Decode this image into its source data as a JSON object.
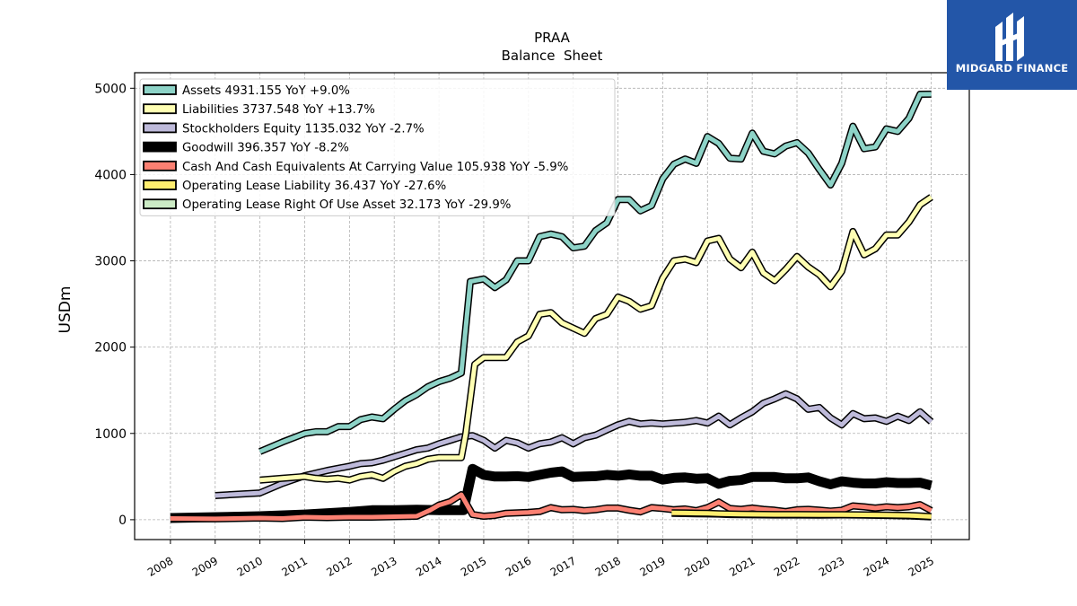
{
  "brand": {
    "name": "MIDGARD FINANCE",
    "bg_color": "#2356a8"
  },
  "chart_data": {
    "type": "line",
    "title": "PRAA",
    "subtitle": "Balance  Sheet",
    "ylabel": "USDm",
    "xlabel": "",
    "xlim": [
      2007.2,
      2025.85
    ],
    "ylim": [
      -230,
      5180
    ],
    "x_ticks": [
      "2008",
      "2009",
      "2010",
      "2011",
      "2012",
      "2013",
      "2014",
      "2015",
      "2016",
      "2017",
      "2018",
      "2019",
      "2020",
      "2021",
      "2022",
      "2023",
      "2024",
      "2025"
    ],
    "y_ticks": [
      "0",
      "1000",
      "2000",
      "3000",
      "4000",
      "5000"
    ],
    "grid": true,
    "legend_position": "top-left",
    "series": [
      {
        "name": "Goodwill",
        "legend": "Goodwill  396.357 YoY -8.2%",
        "color": "#000000",
        "x": [
          2008.0,
          2010.0,
          2011.0,
          2012.0,
          2012.5,
          2013.0,
          2013.5,
          2014.0,
          2014.4,
          2014.55,
          2014.75,
          2015.0,
          2015.25,
          2015.5,
          2015.75,
          2016.0,
          2016.25,
          2016.5,
          2016.75,
          2017.0,
          2017.25,
          2017.5,
          2017.75,
          2018.0,
          2018.25,
          2018.5,
          2018.75,
          2019.0,
          2019.25,
          2019.5,
          2019.75,
          2020.0,
          2020.25,
          2020.5,
          2020.75,
          2021.0,
          2021.25,
          2021.5,
          2021.75,
          2022.0,
          2022.25,
          2022.5,
          2022.75,
          2023.0,
          2023.25,
          2023.5,
          2023.75,
          2024.0,
          2024.25,
          2024.5,
          2024.75,
          2025.0
        ],
        "y": [
          20,
          40,
          60,
          90,
          110,
          110,
          115,
          110,
          110,
          110,
          590,
          520,
          500,
          500,
          505,
          495,
          520,
          545,
          560,
          495,
          500,
          505,
          520,
          510,
          525,
          510,
          510,
          465,
          485,
          490,
          475,
          480,
          415,
          450,
          460,
          495,
          495,
          495,
          480,
          480,
          490,
          445,
          410,
          445,
          430,
          420,
          420,
          435,
          425,
          425,
          430,
          396
        ]
      },
      {
        "name": "Cash And Cash Equivalents At Carrying Value",
        "legend": "Cash And Cash Equivalents At Carrying Value  105.938 YoY -5.9%",
        "color": "#fb8072",
        "x": [
          2008.0,
          2009.0,
          2010.0,
          2010.5,
          2011.0,
          2011.5,
          2012.0,
          2012.5,
          2013.0,
          2013.5,
          2013.8,
          2014.0,
          2014.25,
          2014.5,
          2014.75,
          2015.0,
          2015.25,
          2015.5,
          2015.75,
          2016.0,
          2016.25,
          2016.5,
          2016.75,
          2017.0,
          2017.25,
          2017.5,
          2017.75,
          2018.0,
          2018.25,
          2018.5,
          2018.75,
          2019.0,
          2019.25,
          2019.5,
          2019.75,
          2020.0,
          2020.25,
          2020.5,
          2020.75,
          2021.0,
          2021.25,
          2021.5,
          2021.75,
          2022.0,
          2022.25,
          2022.5,
          2022.75,
          2023.0,
          2023.25,
          2023.5,
          2023.75,
          2024.0,
          2024.25,
          2024.5,
          2024.75,
          2025.0
        ],
        "y": [
          15,
          10,
          20,
          15,
          30,
          25,
          30,
          30,
          35,
          40,
          110,
          170,
          210,
          290,
          60,
          40,
          50,
          75,
          80,
          85,
          95,
          140,
          115,
          120,
          105,
          115,
          135,
          135,
          110,
          90,
          140,
          130,
          115,
          125,
          105,
          140,
          205,
          130,
          120,
          135,
          120,
          110,
          95,
          115,
          120,
          110,
          100,
          110,
          160,
          150,
          135,
          150,
          140,
          150,
          175,
          106
        ]
      },
      {
        "name": "Operating Lease Right Of Use Asset",
        "legend": "Operating Lease Right Of Use Asset  32.173 YoY -29.9%",
        "color": "#ccebc5",
        "x": [
          2019.2,
          2019.5,
          2019.75,
          2020.0,
          2020.25,
          2020.5,
          2020.75,
          2021.0,
          2021.5,
          2022.0,
          2022.5,
          2023.0,
          2023.5,
          2024.0,
          2024.5,
          2025.0
        ],
        "y": [
          75,
          72,
          70,
          68,
          65,
          60,
          58,
          57,
          55,
          55,
          54,
          56,
          54,
          50,
          45,
          32
        ]
      },
      {
        "name": "Operating Lease Liability",
        "legend": "Operating Lease Liability  36.437 YoY -27.6%",
        "color": "#ffed6f",
        "x": [
          2019.2,
          2019.5,
          2019.75,
          2020.0,
          2020.25,
          2020.5,
          2020.75,
          2021.0,
          2021.5,
          2022.0,
          2022.5,
          2023.0,
          2023.5,
          2024.0,
          2024.5,
          2025.0
        ],
        "y": [
          80,
          78,
          76,
          74,
          70,
          66,
          63,
          62,
          60,
          60,
          58,
          58,
          56,
          54,
          50,
          36
        ]
      },
      {
        "name": "Stockholders Equity",
        "legend": "Stockholders Equity  1135.032 YoY -2.7%",
        "color": "#bebada",
        "x": [
          2009.0,
          2010.0,
          2010.5,
          2011.0,
          2011.5,
          2012.0,
          2012.25,
          2012.5,
          2012.75,
          2013.0,
          2013.25,
          2013.5,
          2013.75,
          2014.0,
          2014.25,
          2014.5,
          2014.75,
          2015.0,
          2015.25,
          2015.5,
          2015.75,
          2016.0,
          2016.25,
          2016.5,
          2016.75,
          2017.0,
          2017.25,
          2017.5,
          2017.75,
          2018.0,
          2018.25,
          2018.5,
          2018.75,
          2019.0,
          2019.25,
          2019.5,
          2019.75,
          2020.0,
          2020.25,
          2020.5,
          2020.75,
          2021.0,
          2021.25,
          2021.5,
          2021.75,
          2022.0,
          2022.25,
          2022.5,
          2022.75,
          2023.0,
          2023.25,
          2023.5,
          2023.75,
          2024.0,
          2024.25,
          2024.5,
          2024.75,
          2025.0
        ],
        "y": [
          280,
          310,
          420,
          510,
          570,
          620,
          650,
          660,
          690,
          730,
          770,
          810,
          830,
          880,
          920,
          960,
          975,
          920,
          830,
          920,
          890,
          830,
          880,
          900,
          950,
          880,
          950,
          980,
          1040,
          1100,
          1140,
          1110,
          1120,
          1110,
          1120,
          1130,
          1150,
          1120,
          1200,
          1100,
          1180,
          1250,
          1350,
          1400,
          1460,
          1400,
          1280,
          1300,
          1180,
          1100,
          1230,
          1170,
          1180,
          1140,
          1200,
          1150,
          1250,
          1135
        ]
      },
      {
        "name": "Liabilities",
        "legend": "Liabilities  3737.548 YoY +13.7%",
        "color": "#ffffb3",
        "x": [
          2010.0,
          2010.5,
          2011.0,
          2011.25,
          2011.5,
          2011.75,
          2012.0,
          2012.25,
          2012.5,
          2012.75,
          2013.0,
          2013.25,
          2013.5,
          2013.75,
          2014.0,
          2014.25,
          2014.5,
          2014.6,
          2014.8,
          2015.0,
          2015.25,
          2015.5,
          2015.75,
          2016.0,
          2016.25,
          2016.5,
          2016.75,
          2017.0,
          2017.25,
          2017.5,
          2017.75,
          2018.0,
          2018.25,
          2018.5,
          2018.75,
          2019.0,
          2019.25,
          2019.5,
          2019.75,
          2020.0,
          2020.25,
          2020.5,
          2020.75,
          2021.0,
          2021.25,
          2021.5,
          2021.75,
          2022.0,
          2022.25,
          2022.5,
          2022.75,
          2023.0,
          2023.25,
          2023.5,
          2023.75,
          2024.0,
          2024.25,
          2024.5,
          2024.75,
          2025.0
        ],
        "y": [
          460,
          480,
          500,
          480,
          470,
          480,
          460,
          500,
          520,
          480,
          560,
          620,
          650,
          700,
          720,
          720,
          720,
          1000,
          1800,
          1880,
          1880,
          1880,
          2060,
          2130,
          2380,
          2400,
          2280,
          2220,
          2160,
          2330,
          2380,
          2580,
          2530,
          2440,
          2480,
          2800,
          3000,
          3020,
          2980,
          3230,
          3260,
          3020,
          2920,
          3100,
          2860,
          2770,
          2900,
          3050,
          2930,
          2840,
          2700,
          2880,
          3340,
          3070,
          3140,
          3300,
          3300,
          3450,
          3650,
          3738
        ]
      },
      {
        "name": "Assets",
        "legend": "Assets  4931.155 YoY +9.0%",
        "color": "#8dd3c7",
        "x": [
          2010.0,
          2010.5,
          2011.0,
          2011.25,
          2011.5,
          2011.75,
          2012.0,
          2012.25,
          2012.5,
          2012.75,
          2013.0,
          2013.25,
          2013.5,
          2013.75,
          2014.0,
          2014.25,
          2014.5,
          2014.7,
          2015.0,
          2015.25,
          2015.5,
          2015.75,
          2016.0,
          2016.25,
          2016.5,
          2016.75,
          2017.0,
          2017.25,
          2017.5,
          2017.75,
          2018.0,
          2018.25,
          2018.5,
          2018.75,
          2019.0,
          2019.25,
          2019.5,
          2019.75,
          2020.0,
          2020.25,
          2020.5,
          2020.75,
          2021.0,
          2021.25,
          2021.5,
          2021.75,
          2022.0,
          2022.25,
          2022.5,
          2022.75,
          2023.0,
          2023.25,
          2023.5,
          2023.75,
          2024.0,
          2024.25,
          2024.5,
          2024.75,
          2025.0
        ],
        "y": [
          790,
          900,
          1000,
          1020,
          1020,
          1080,
          1080,
          1160,
          1190,
          1170,
          1280,
          1380,
          1450,
          1540,
          1600,
          1640,
          1700,
          2760,
          2790,
          2690,
          2780,
          3000,
          3000,
          3280,
          3310,
          3280,
          3150,
          3170,
          3350,
          3440,
          3710,
          3710,
          3580,
          3640,
          3950,
          4120,
          4180,
          4130,
          4440,
          4360,
          4190,
          4180,
          4480,
          4270,
          4240,
          4330,
          4370,
          4250,
          4060,
          3880,
          4130,
          4560,
          4300,
          4320,
          4530,
          4500,
          4650,
          4930,
          4931
        ]
      }
    ]
  }
}
